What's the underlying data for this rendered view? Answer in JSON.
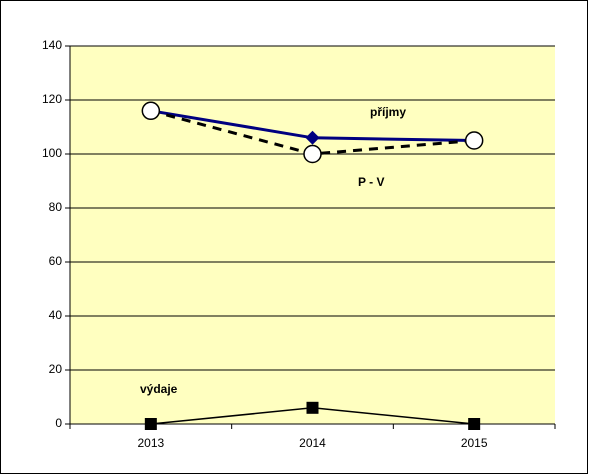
{
  "chart_data": {
    "type": "line",
    "categories": [
      "2013",
      "2014",
      "2015"
    ],
    "series": [
      {
        "name": "příjmy",
        "color": "#000080",
        "marker": "diamond",
        "dash": false,
        "values": [
          116,
          106,
          105
        ]
      },
      {
        "name": "P - V",
        "color": "#000000",
        "marker": "circle",
        "dash": true,
        "values": [
          116,
          100,
          105
        ]
      },
      {
        "name": "výdaje",
        "color": "#000000",
        "marker": "square",
        "dash": false,
        "values": [
          0,
          6,
          0
        ]
      }
    ],
    "ylim": [
      0,
      140
    ],
    "yticks": [
      0,
      20,
      40,
      60,
      80,
      100,
      120,
      140
    ],
    "grid": true,
    "background": "#ffffc0"
  }
}
